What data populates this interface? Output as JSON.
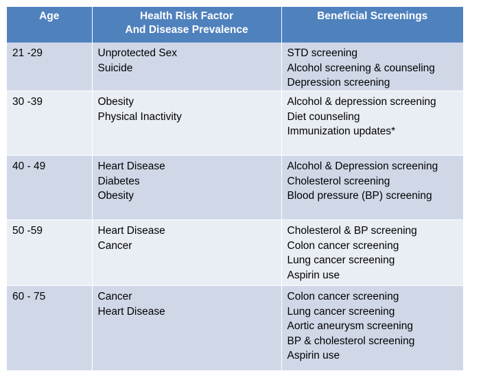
{
  "header": {
    "age": "Age",
    "risk_line1": "Health Risk Factor",
    "risk_line2": "And Disease Prevalence",
    "screenings": "Beneficial Screenings"
  },
  "colors": {
    "header_bg": "#4f81bd",
    "band_dark": "#d0d8e8",
    "band_light": "#e9edf4"
  },
  "rows": [
    {
      "age": "21 -29",
      "risks": [
        "Unprotected Sex",
        "Suicide"
      ],
      "screenings": [
        "STD screening",
        "Alcohol screening & counseling",
        "Depression screening"
      ]
    },
    {
      "age": "30 -39",
      "risks": [
        "Obesity",
        "Physical Inactivity"
      ],
      "screenings": [
        "Alcohol & depression screening",
        "Diet counseling",
        "Immunization updates*"
      ]
    },
    {
      "age": "40 - 49",
      "risks": [
        "Heart Disease",
        "Diabetes",
        "Obesity"
      ],
      "screenings": [
        "Alcohol & Depression screening",
        "Cholesterol screening",
        "Blood pressure (BP) screening"
      ]
    },
    {
      "age": "50 -59",
      "risks": [
        "Heart Disease",
        "Cancer"
      ],
      "screenings": [
        "Cholesterol & BP screening",
        "Colon cancer screening",
        "Lung cancer screening",
        "Aspirin use"
      ]
    },
    {
      "age": "60 - 75",
      "risks": [
        "Cancer",
        "Heart Disease"
      ],
      "screenings": [
        "Colon cancer screening",
        "Lung cancer screening",
        "Aortic aneurysm screening",
        "BP & cholesterol screening",
        "Aspirin use"
      ]
    }
  ]
}
